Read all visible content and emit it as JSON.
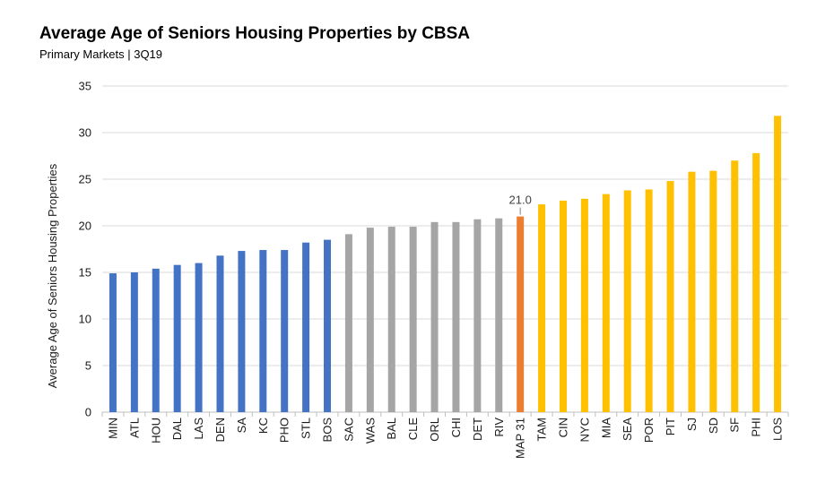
{
  "chart_data": {
    "type": "bar",
    "title": "Average Age of Seniors Housing Properties by CBSA",
    "subtitle": "Primary Markets  | 3Q19",
    "ylabel": "Average Age of Seniors Housing Properties",
    "xlabel": "",
    "ylim": [
      0,
      35
    ],
    "yticks": [
      0,
      5,
      10,
      15,
      20,
      25,
      30,
      35
    ],
    "grid": true,
    "legend": "none",
    "categories": [
      "MIN",
      "ATL",
      "HOU",
      "DAL",
      "LAS",
      "DEN",
      "SA",
      "KC",
      "PHO",
      "STL",
      "BOS",
      "SAC",
      "WAS",
      "BAL",
      "CLE",
      "ORL",
      "CHI",
      "DET",
      "RIV",
      "MAP 31",
      "TAM",
      "CIN",
      "NYC",
      "MIA",
      "SEA",
      "POR",
      "PIT",
      "SJ",
      "SD",
      "SF",
      "PHI",
      "LOS"
    ],
    "values": [
      14.9,
      15.0,
      15.4,
      15.8,
      16.0,
      16.8,
      17.3,
      17.4,
      17.4,
      18.2,
      18.5,
      19.1,
      19.8,
      19.9,
      19.9,
      20.4,
      20.4,
      20.7,
      20.8,
      21.0,
      22.3,
      22.7,
      22.9,
      23.4,
      23.8,
      23.9,
      24.8,
      25.8,
      25.9,
      27.0,
      27.8,
      31.8
    ],
    "bar_colors": [
      "#4472C4",
      "#4472C4",
      "#4472C4",
      "#4472C4",
      "#4472C4",
      "#4472C4",
      "#4472C4",
      "#4472C4",
      "#4472C4",
      "#4472C4",
      "#4472C4",
      "#A5A5A5",
      "#A5A5A5",
      "#A5A5A5",
      "#A5A5A5",
      "#A5A5A5",
      "#A5A5A5",
      "#A5A5A5",
      "#A5A5A5",
      "#ED7D31",
      "#FFC000",
      "#FFC000",
      "#FFC000",
      "#FFC000",
      "#FFC000",
      "#FFC000",
      "#FFC000",
      "#FFC000",
      "#FFC000",
      "#FFC000",
      "#FFC000",
      "#FFC000"
    ],
    "data_labels": [
      {
        "category": "MAP 31",
        "text": "21.0"
      }
    ]
  }
}
